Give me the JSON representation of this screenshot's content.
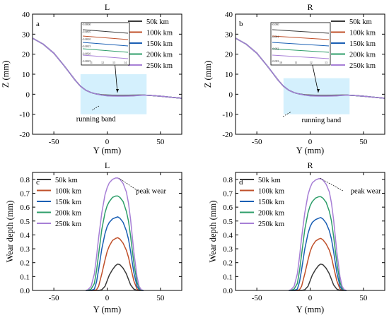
{
  "chart_data": [
    {
      "id": "a",
      "type": "line",
      "title": "L",
      "panel_letter": "a",
      "xlabel": "Y (mm)",
      "ylabel": "Z (mm)",
      "xlim": [
        -70,
        70
      ],
      "ylim": [
        -20,
        40
      ],
      "xticks": [
        -50,
        0,
        50
      ],
      "yticks": [
        -20,
        -10,
        0,
        10,
        20,
        30,
        40
      ],
      "x": [
        -70,
        -60,
        -50,
        -40,
        -35,
        -30,
        -25,
        -20,
        -15,
        -10,
        -5,
        0,
        5,
        10,
        15,
        20,
        25,
        30,
        35,
        40,
        50,
        60,
        70
      ],
      "series": [
        {
          "name": "50k km",
          "color": "#3a3a3a",
          "values": [
            28,
            25,
            20.5,
            14,
            10.5,
            7,
            4,
            2,
            0.8,
            0.1,
            -0.25,
            -0.4,
            -0.5,
            -0.55,
            -0.55,
            -0.5,
            -0.45,
            -0.4,
            -0.45,
            -0.6,
            -1.0,
            -1.5,
            -2.0
          ]
        },
        {
          "name": "100k km",
          "color": "#c0502a",
          "values": [
            28,
            25,
            20.5,
            14,
            10.5,
            7,
            4,
            2,
            0.8,
            0.1,
            -0.3,
            -0.5,
            -0.6,
            -0.65,
            -0.65,
            -0.6,
            -0.55,
            -0.45,
            -0.45,
            -0.6,
            -1.0,
            -1.5,
            -2.0
          ]
        },
        {
          "name": "150k km",
          "color": "#1a5fb4",
          "values": [
            28,
            25,
            20.5,
            14,
            10.5,
            7,
            4,
            2,
            0.8,
            0.1,
            -0.35,
            -0.6,
            -0.7,
            -0.75,
            -0.75,
            -0.7,
            -0.65,
            -0.5,
            -0.45,
            -0.6,
            -1.0,
            -1.5,
            -2.0
          ]
        },
        {
          "name": "200k km",
          "color": "#2e9e6a",
          "values": [
            28,
            25,
            20.5,
            14,
            10.5,
            7,
            4,
            2,
            0.8,
            0.1,
            -0.4,
            -0.7,
            -0.8,
            -0.85,
            -0.85,
            -0.8,
            -0.7,
            -0.55,
            -0.45,
            -0.6,
            -1.0,
            -1.5,
            -2.0
          ]
        },
        {
          "name": "250k km",
          "color": "#a77fd6",
          "values": [
            28,
            25,
            20.5,
            14,
            10.5,
            7,
            4,
            2,
            0.8,
            0.1,
            -0.45,
            -0.8,
            -0.9,
            -0.95,
            -0.95,
            -0.9,
            -0.8,
            -0.6,
            -0.45,
            -0.6,
            -1.0,
            -1.5,
            -2.0
          ]
        }
      ],
      "highlight_band": {
        "x": [
          -25,
          37
        ],
        "y": [
          -10,
          10
        ]
      },
      "annotations": [
        {
          "text": "running band",
          "x": -29,
          "y": -13.5
        }
      ],
      "inset": {
        "xticks": [
          "11",
          "12",
          "13",
          "14"
        ],
        "yticks": [
          "-0.0800",
          "-0.0805",
          "-0.0810",
          "-0.0815",
          "-0.0820",
          "-0.0825"
        ]
      },
      "legend": "top-right"
    },
    {
      "id": "b",
      "type": "line",
      "title": "R",
      "panel_letter": "b",
      "xlabel": "Y (mm)",
      "ylabel": "Z (mm)",
      "xlim": [
        -70,
        70
      ],
      "ylim": [
        -20,
        40
      ],
      "xticks": [
        -50,
        0,
        50
      ],
      "yticks": [
        -20,
        -10,
        0,
        10,
        20,
        30,
        40
      ],
      "x": [
        -70,
        -60,
        -50,
        -40,
        -35,
        -30,
        -25,
        -20,
        -15,
        -10,
        -5,
        0,
        5,
        10,
        15,
        20,
        25,
        30,
        35,
        40,
        50,
        60,
        70
      ],
      "series": [
        {
          "name": "50k km",
          "color": "#3a3a3a",
          "values": [
            28,
            25,
            20.5,
            14,
            10.5,
            7,
            4,
            2,
            0.8,
            0.1,
            -0.25,
            -0.4,
            -0.5,
            -0.55,
            -0.55,
            -0.5,
            -0.45,
            -0.4,
            -0.45,
            -0.6,
            -1.0,
            -1.5,
            -2.0
          ]
        },
        {
          "name": "100k km",
          "color": "#c0502a",
          "values": [
            28,
            25,
            20.5,
            14,
            10.5,
            7,
            4,
            2,
            0.8,
            0.1,
            -0.3,
            -0.5,
            -0.6,
            -0.65,
            -0.65,
            -0.6,
            -0.55,
            -0.45,
            -0.45,
            -0.6,
            -1.0,
            -1.5,
            -2.0
          ]
        },
        {
          "name": "150k km",
          "color": "#1a5fb4",
          "values": [
            28,
            25,
            20.5,
            14,
            10.5,
            7,
            4,
            2,
            0.8,
            0.1,
            -0.35,
            -0.6,
            -0.7,
            -0.75,
            -0.75,
            -0.7,
            -0.65,
            -0.5,
            -0.45,
            -0.6,
            -1.0,
            -1.5,
            -2.0
          ]
        },
        {
          "name": "200k km",
          "color": "#2e9e6a",
          "values": [
            28,
            25,
            20.5,
            14,
            10.5,
            7,
            4,
            2,
            0.8,
            0.1,
            -0.4,
            -0.7,
            -0.8,
            -0.85,
            -0.85,
            -0.8,
            -0.7,
            -0.55,
            -0.45,
            -0.6,
            -1.0,
            -1.5,
            -2.0
          ]
        },
        {
          "name": "250k km",
          "color": "#a77fd6",
          "values": [
            28,
            25,
            20.5,
            14,
            10.5,
            7,
            4,
            2,
            0.8,
            0.1,
            -0.45,
            -0.8,
            -0.9,
            -0.95,
            -0.95,
            -0.9,
            -0.8,
            -0.6,
            -0.45,
            -0.6,
            -1.0,
            -1.5,
            -2.0
          ]
        }
      ],
      "highlight_band": {
        "x": [
          -25,
          37
        ],
        "y": [
          -10,
          8
        ]
      },
      "annotations": [
        {
          "text": "running band",
          "x": -8,
          "y": -14
        }
      ],
      "inset": {
        "xticks": [
          "10",
          "11",
          "12",
          "13"
        ],
        "yticks": [
          "-0.080",
          "-0.081",
          "-0.082",
          "-0.083"
        ]
      },
      "legend": "top-right"
    },
    {
      "id": "c",
      "type": "line",
      "title": "L",
      "panel_letter": "c",
      "xlabel": "Y (mm)",
      "ylabel": "Wear depth (mm)",
      "xlim": [
        -70,
        70
      ],
      "ylim": [
        0,
        0.85
      ],
      "xticks": [
        -50,
        0,
        50
      ],
      "yticks": [
        0.0,
        0.1,
        0.2,
        0.3,
        0.4,
        0.5,
        0.6,
        0.7,
        0.8
      ],
      "x": [
        -20,
        -18,
        -15,
        -12,
        -10,
        -8,
        -5,
        -2,
        0,
        2,
        5,
        8,
        10,
        12,
        15,
        18,
        20,
        22,
        25,
        28,
        30,
        32,
        34
      ],
      "series": [
        {
          "name": "50k km",
          "color": "#3a3a3a",
          "values": [
            0,
            0,
            0,
            0,
            0,
            0,
            0.005,
            0.03,
            0.07,
            0.11,
            0.15,
            0.18,
            0.19,
            0.185,
            0.16,
            0.12,
            0.08,
            0.04,
            0.01,
            0,
            0,
            0,
            0
          ]
        },
        {
          "name": "100k km",
          "color": "#c0502a",
          "values": [
            0,
            0,
            0,
            0,
            0.005,
            0.03,
            0.12,
            0.22,
            0.28,
            0.32,
            0.36,
            0.375,
            0.38,
            0.37,
            0.34,
            0.29,
            0.24,
            0.17,
            0.07,
            0.01,
            0,
            0,
            0
          ]
        },
        {
          "name": "150k km",
          "color": "#1a5fb4",
          "values": [
            0,
            0,
            0,
            0.01,
            0.06,
            0.15,
            0.3,
            0.41,
            0.46,
            0.49,
            0.515,
            0.525,
            0.53,
            0.52,
            0.49,
            0.43,
            0.37,
            0.28,
            0.13,
            0.03,
            0.005,
            0,
            0
          ]
        },
        {
          "name": "200k km",
          "color": "#2e9e6a",
          "values": [
            0,
            0,
            0.01,
            0.05,
            0.14,
            0.26,
            0.44,
            0.56,
            0.61,
            0.64,
            0.67,
            0.68,
            0.68,
            0.67,
            0.64,
            0.57,
            0.5,
            0.39,
            0.2,
            0.06,
            0.015,
            0,
            0
          ]
        },
        {
          "name": "250k km",
          "color": "#a77fd6",
          "values": [
            0,
            0.005,
            0.03,
            0.12,
            0.24,
            0.38,
            0.56,
            0.69,
            0.74,
            0.775,
            0.8,
            0.81,
            0.81,
            0.8,
            0.77,
            0.71,
            0.63,
            0.51,
            0.28,
            0.1,
            0.03,
            0.005,
            0
          ]
        }
      ],
      "annotations": [
        {
          "text": "peak wear",
          "x": 27,
          "y": 0.7
        }
      ],
      "legend": "top-left"
    },
    {
      "id": "d",
      "type": "line",
      "title": "R",
      "panel_letter": "d",
      "xlabel": "Y (mm)",
      "ylabel": "Wear depth (mm)",
      "xlim": [
        -70,
        70
      ],
      "ylim": [
        0,
        0.85
      ],
      "xticks": [
        -50,
        0,
        50
      ],
      "yticks": [
        0.0,
        0.1,
        0.2,
        0.3,
        0.4,
        0.5,
        0.6,
        0.7,
        0.8
      ],
      "x": [
        -20,
        -18,
        -15,
        -12,
        -10,
        -8,
        -5,
        -2,
        0,
        2,
        5,
        8,
        10,
        12,
        15,
        18,
        20,
        22,
        25,
        28,
        30,
        32,
        34
      ],
      "series": [
        {
          "name": "50k km",
          "color": "#3a3a3a",
          "values": [
            0,
            0,
            0,
            0,
            0,
            0,
            0.005,
            0.03,
            0.07,
            0.11,
            0.15,
            0.18,
            0.19,
            0.185,
            0.16,
            0.12,
            0.08,
            0.04,
            0.01,
            0,
            0,
            0,
            0
          ]
        },
        {
          "name": "100k km",
          "color": "#c0502a",
          "values": [
            0,
            0,
            0,
            0,
            0.005,
            0.03,
            0.12,
            0.22,
            0.28,
            0.32,
            0.355,
            0.37,
            0.375,
            0.365,
            0.335,
            0.29,
            0.24,
            0.17,
            0.07,
            0.01,
            0,
            0,
            0
          ]
        },
        {
          "name": "150k km",
          "color": "#1a5fb4",
          "values": [
            0,
            0,
            0,
            0.01,
            0.06,
            0.15,
            0.3,
            0.41,
            0.46,
            0.49,
            0.51,
            0.52,
            0.525,
            0.515,
            0.485,
            0.43,
            0.37,
            0.28,
            0.13,
            0.03,
            0.005,
            0,
            0
          ]
        },
        {
          "name": "200k km",
          "color": "#2e9e6a",
          "values": [
            0,
            0,
            0.01,
            0.05,
            0.14,
            0.26,
            0.44,
            0.56,
            0.61,
            0.64,
            0.665,
            0.675,
            0.675,
            0.665,
            0.635,
            0.57,
            0.5,
            0.39,
            0.2,
            0.06,
            0.015,
            0,
            0
          ]
        },
        {
          "name": "250k km",
          "color": "#a77fd6",
          "values": [
            0,
            0.005,
            0.03,
            0.12,
            0.24,
            0.38,
            0.56,
            0.69,
            0.74,
            0.775,
            0.795,
            0.805,
            0.805,
            0.795,
            0.765,
            0.71,
            0.63,
            0.51,
            0.28,
            0.1,
            0.03,
            0.005,
            0
          ]
        }
      ],
      "annotations": [
        {
          "text": "peak wear",
          "x": 38,
          "y": 0.7
        }
      ],
      "legend": "top-left"
    }
  ]
}
